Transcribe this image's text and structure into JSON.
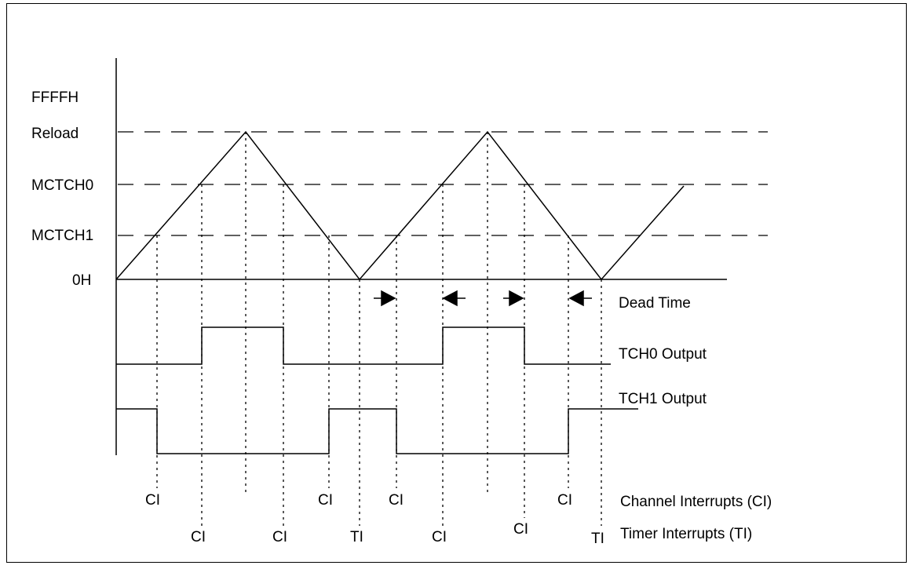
{
  "levels": {
    "ffffh": "FFFFH",
    "reload": "Reload",
    "mctch0": "MCTCH0",
    "mctch1": "MCTCH1",
    "zero": "0H"
  },
  "legend": {
    "dead_time": "Dead Time",
    "tch0_output": "TCH0 Output",
    "tch1_output": "TCH1 Output",
    "channel_interrupts": "Channel Interrupts (CI)",
    "timer_interrupts": "Timer Interrupts (TI)"
  },
  "markers": {
    "ci": "CI",
    "ti": "TI"
  },
  "colors": {
    "line": "#000000",
    "background": "#ffffff"
  }
}
